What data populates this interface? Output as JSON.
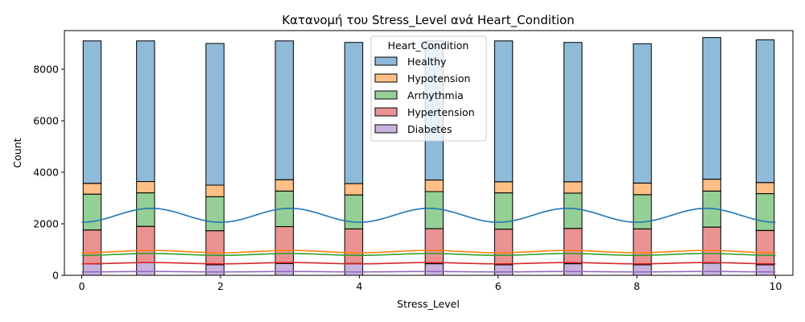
{
  "chart_data": {
    "type": "bar",
    "title": "Κατανομή του Stress_Level ανά Heart_Condition",
    "xlabel": "Stress_Level",
    "ylabel": "Count",
    "xlim": [
      -0.25,
      10.25
    ],
    "ylim": [
      0,
      9500
    ],
    "xticks": [
      0,
      2,
      4,
      6,
      8,
      10
    ],
    "yticks": [
      0,
      2000,
      4000,
      6000,
      8000
    ],
    "stacked": true,
    "x": [
      0.15,
      0.92,
      1.92,
      2.92,
      3.92,
      5.08,
      6.08,
      7.08,
      8.08,
      9.08,
      9.85
    ],
    "bin_width": 0.26,
    "legend": {
      "title": "Heart_Condition",
      "position": "upper-center"
    },
    "series": [
      {
        "name": "Healthy",
        "color": "#1f77b4",
        "values": [
          5530,
          5460,
          5500,
          5390,
          5480,
          5400,
          5470,
          5410,
          5410,
          5500,
          5540
        ]
      },
      {
        "name": "Hypotension",
        "color": "#ff7f0e",
        "values": [
          420,
          440,
          450,
          440,
          440,
          450,
          430,
          440,
          450,
          460,
          430
        ]
      },
      {
        "name": "Arrhythmia",
        "color": "#2ca02c",
        "values": [
          1390,
          1300,
          1320,
          1380,
          1320,
          1440,
          1410,
          1370,
          1330,
          1400,
          1430
        ]
      },
      {
        "name": "Hypertension",
        "color": "#d62728",
        "values": [
          1320,
          1410,
          1320,
          1430,
          1340,
          1360,
          1380,
          1370,
          1390,
          1400,
          1330
        ]
      },
      {
        "name": "Diabetes",
        "color": "#9467bd",
        "values": [
          440,
          490,
          410,
          460,
          460,
          450,
          410,
          450,
          410,
          470,
          410
        ]
      }
    ],
    "kde": [
      {
        "name": "Healthy",
        "color": "#1f77b4",
        "mean": 2330,
        "amplitude": 270,
        "period": 2,
        "peak_x": 1
      },
      {
        "name": "Hypotension",
        "color": "#ff7f0e",
        "mean": 920,
        "amplitude": 45,
        "period": 2,
        "peak_x": 1
      },
      {
        "name": "Arrhythmia",
        "color": "#2ca02c",
        "mean": 810,
        "amplitude": 35,
        "period": 2,
        "peak_x": 1
      },
      {
        "name": "Hypertension",
        "color": "#d62728",
        "mean": 470,
        "amplitude": 25,
        "period": 2,
        "peak_x": 1
      },
      {
        "name": "Diabetes",
        "color": "#9467bd",
        "mean": 140,
        "amplitude": 8,
        "period": 2,
        "peak_x": 1
      }
    ]
  }
}
